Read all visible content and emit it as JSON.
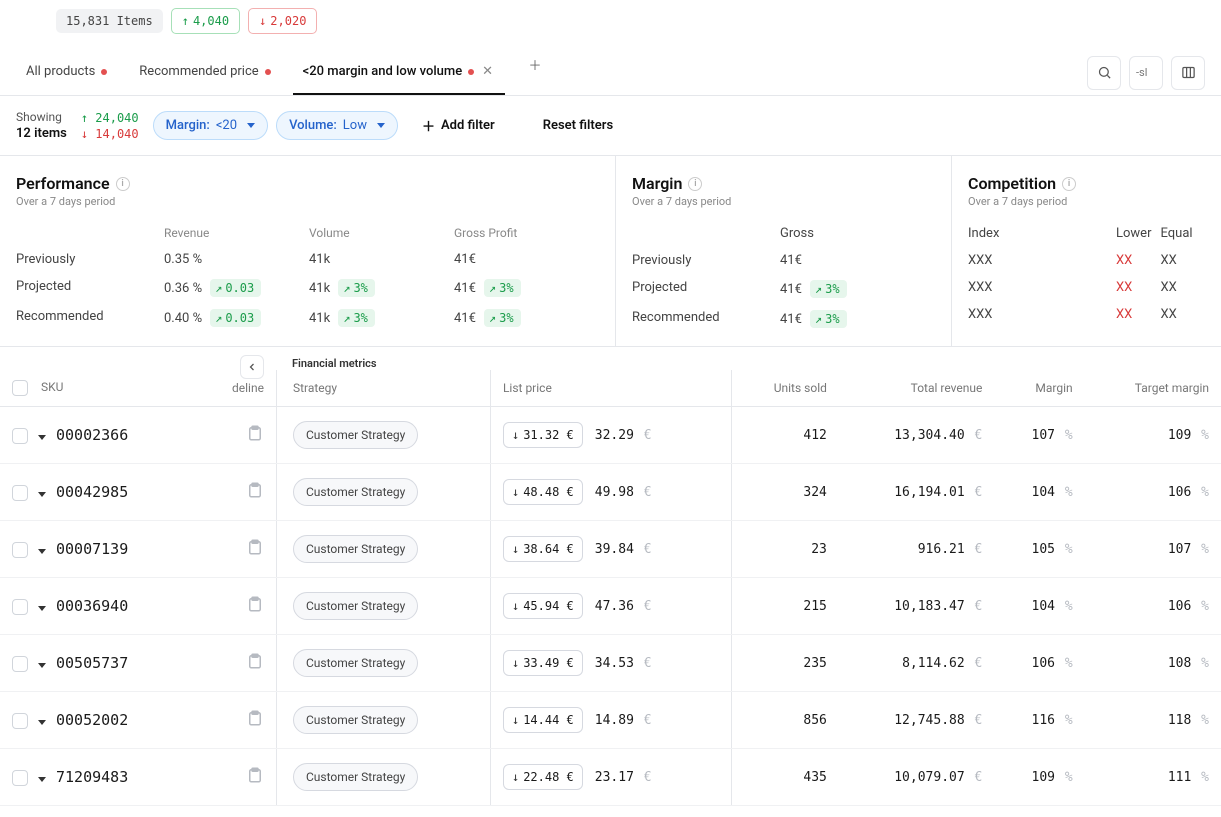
{
  "colors": {
    "green": "#1a9c4a",
    "red": "#d83a3a",
    "blue": "#2563cb",
    "muted": "#b6bac1",
    "border": "#e5e7eb"
  },
  "topBadges": {
    "items": "15,831 Items",
    "up": "4,040",
    "down": "2,020"
  },
  "tabs": [
    {
      "label": "All products",
      "dot": true,
      "active": false
    },
    {
      "label": "Recommended price",
      "dot": true,
      "active": false
    },
    {
      "label": "<20 margin and low volume",
      "dot": true,
      "active": true,
      "closable": true
    }
  ],
  "toolbar": {
    "searchPlaceholder": "-sl"
  },
  "showing": {
    "label": "Showing",
    "countLabel": "12 items",
    "up": "24,040",
    "down": "14,040"
  },
  "filters": {
    "chips": [
      {
        "label": "Margin:",
        "value": "<20"
      },
      {
        "label": "Volume:",
        "value": "Low"
      }
    ],
    "addFilter": "Add filter",
    "reset": "Reset filters"
  },
  "summary": {
    "periodLabel": "Over a 7 days period",
    "performance": {
      "title": "Performance",
      "cols": [
        "Revenue",
        "Volume",
        "Gross Profit"
      ],
      "rows": [
        {
          "label": "Previously",
          "revenue": "0.35 %",
          "revenueDelta": null,
          "volume": "41k",
          "volumeDelta": null,
          "gp": "41€",
          "gpDelta": null
        },
        {
          "label": "Projected",
          "revenue": "0.36 %",
          "revenueDelta": "0.03",
          "volume": "41k",
          "volumeDelta": "3%",
          "gp": "41€",
          "gpDelta": "3%"
        },
        {
          "label": "Recommended",
          "revenue": "0.40 %",
          "revenueDelta": "0.03",
          "volume": "41k",
          "volumeDelta": "3%",
          "gp": "41€",
          "gpDelta": "3%"
        }
      ]
    },
    "margin": {
      "title": "Margin",
      "col": "Gross",
      "rows": [
        {
          "label": "Previously",
          "value": "41€",
          "delta": null
        },
        {
          "label": "Projected",
          "value": "41€",
          "delta": "3%"
        },
        {
          "label": "Recommended",
          "value": "41€",
          "delta": "3%"
        }
      ]
    },
    "competition": {
      "title": "Competition",
      "cols": [
        "Index",
        "Lower",
        "Equal"
      ],
      "rows": [
        {
          "label": "",
          "index": "XXX",
          "lower": "XX",
          "equal": "XX"
        },
        {
          "label": "",
          "index": "XXX",
          "lower": "XX",
          "equal": "XX"
        },
        {
          "label": "",
          "index": "XXX",
          "lower": "XX",
          "equal": "XX"
        }
      ]
    }
  },
  "table": {
    "sectionHeader": "Financial metrics",
    "headers": {
      "sku": "SKU",
      "guideline": "deline",
      "strategy": "Strategy",
      "listPrice": "List price",
      "unitsSold": "Units sold",
      "totalRevenue": "Total revenue",
      "margin": "Margin",
      "targetMargin": "Target margin"
    },
    "currency": "€",
    "pct": "%",
    "rows": [
      {
        "sku": "00002366",
        "strategy": "Customer Strategy",
        "priceNew": "31.32",
        "priceOld": "32.29",
        "units": "412",
        "revenue": "13,304.40",
        "margin": "107",
        "target": "109"
      },
      {
        "sku": "00042985",
        "strategy": "Customer Strategy",
        "priceNew": "48.48",
        "priceOld": "49.98",
        "units": "324",
        "revenue": "16,194.01",
        "margin": "104",
        "target": "106"
      },
      {
        "sku": "00007139",
        "strategy": "Customer Strategy",
        "priceNew": "38.64",
        "priceOld": "39.84",
        "units": "23",
        "revenue": "916.21",
        "margin": "105",
        "target": "107"
      },
      {
        "sku": "00036940",
        "strategy": "Customer Strategy",
        "priceNew": "45.94",
        "priceOld": "47.36",
        "units": "215",
        "revenue": "10,183.47",
        "margin": "104",
        "target": "106"
      },
      {
        "sku": "00505737",
        "strategy": "Customer Strategy",
        "priceNew": "33.49",
        "priceOld": "34.53",
        "units": "235",
        "revenue": "8,114.62",
        "margin": "106",
        "target": "108"
      },
      {
        "sku": "00052002",
        "strategy": "Customer Strategy",
        "priceNew": "14.44",
        "priceOld": "14.89",
        "units": "856",
        "revenue": "12,745.88",
        "margin": "116",
        "target": "118"
      },
      {
        "sku": "71209483",
        "strategy": "Customer Strategy",
        "priceNew": "22.48",
        "priceOld": "23.17",
        "units": "435",
        "revenue": "10,079.07",
        "margin": "109",
        "target": "111"
      }
    ]
  }
}
